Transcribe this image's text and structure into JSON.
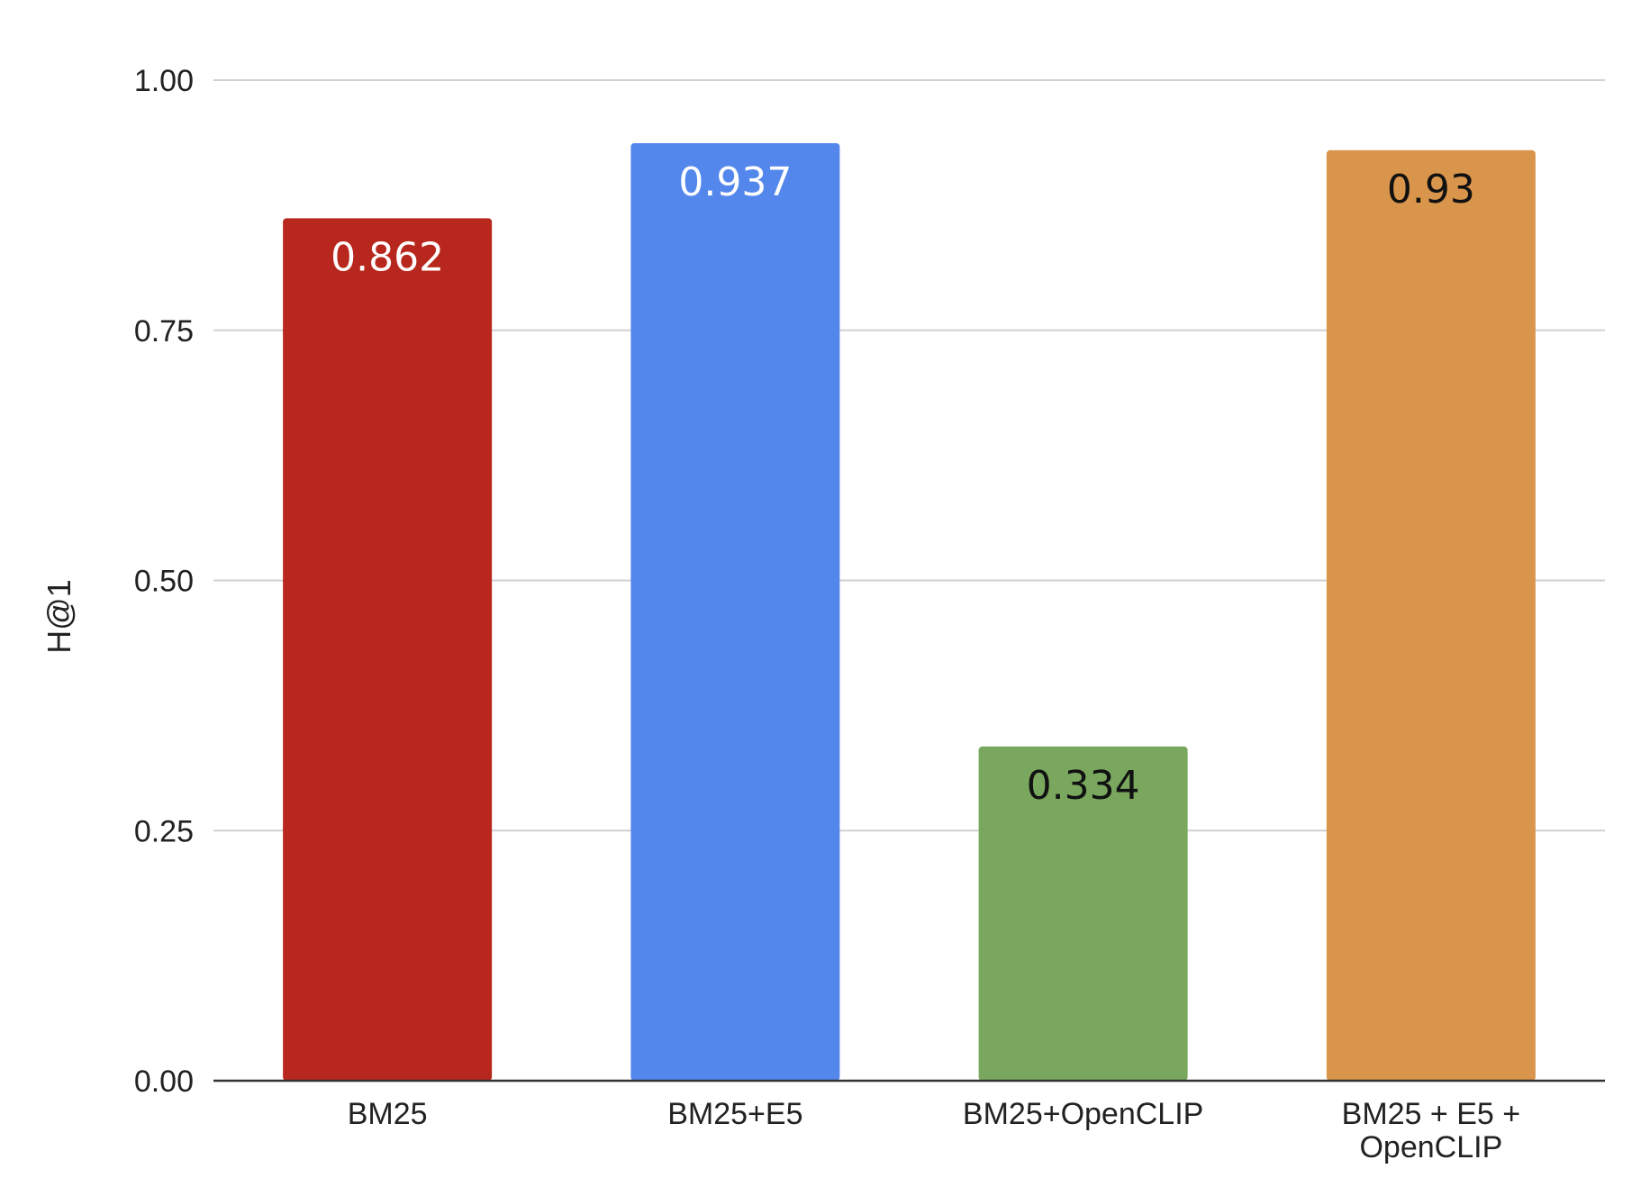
{
  "chart_data": {
    "type": "bar",
    "title": "",
    "xlabel": "",
    "ylabel": "H@1",
    "ylim": [
      0,
      1
    ],
    "yticks": [
      "0.00",
      "0.25",
      "0.50",
      "0.75",
      "1.00"
    ],
    "grid": true,
    "legend": "none",
    "categories": [
      [
        "BM25"
      ],
      [
        "BM25+E5"
      ],
      [
        "BM25+OpenCLIP"
      ],
      [
        "BM25 + E5 +",
        "OpenCLIP"
      ]
    ],
    "values": [
      0.862,
      0.937,
      0.334,
      0.93
    ],
    "data_labels": [
      "0.862",
      "0.937",
      "0.334",
      "0.93"
    ],
    "colors": [
      "#b8271d",
      "#5487ec",
      "#7aa75e",
      "#d9954b"
    ],
    "label_colors": [
      "#ffffff",
      "#ffffff",
      "#111111",
      "#111111"
    ]
  }
}
